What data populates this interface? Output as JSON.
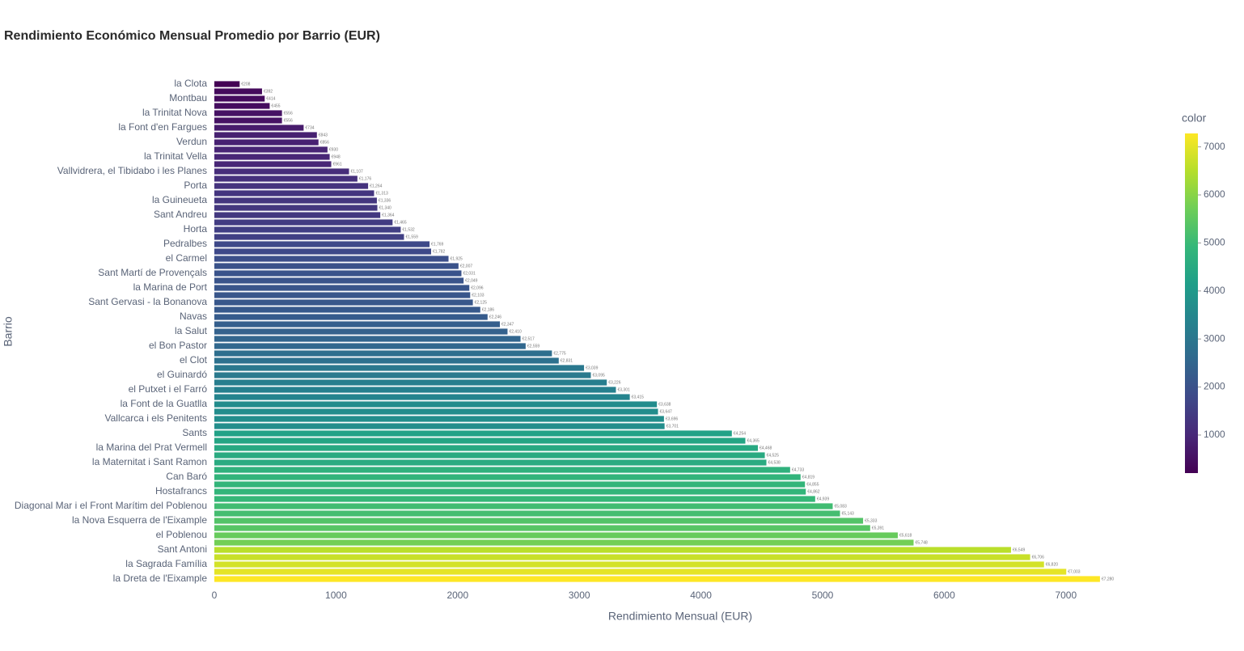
{
  "chart_data": {
    "type": "hbar",
    "title": "Rendimiento Económico Mensual Promedio por Barrio (EUR)",
    "x_label": "Rendimiento Mensual (EUR)",
    "y_label": "Barrio",
    "categories": [
      "la Clota",
      null,
      "Montbau",
      null,
      "la Trinitat Nova",
      null,
      "la Font d'en Fargues",
      null,
      "Verdun",
      null,
      "la Trinitat Vella",
      null,
      "Vallvidrera, el Tibidabo i les Planes",
      null,
      "Porta",
      null,
      "la Guineueta",
      null,
      "Sant Andreu",
      null,
      "Horta",
      null,
      "Pedralbes",
      null,
      "el Carmel",
      null,
      "Sant Martí de Provençals",
      null,
      "la Marina de Port",
      null,
      "Sant Gervasi - la Bonanova",
      null,
      "Navas",
      null,
      "la Salut",
      null,
      "el Bon Pastor",
      null,
      "el Clot",
      null,
      "el Guinardó",
      null,
      "el Putxet i el Farró",
      null,
      "la Font de la Guatlla",
      null,
      "Vallcarca i els Penitents",
      null,
      "Sants",
      null,
      "la Marina del Prat Vermell",
      null,
      "la Maternitat i Sant Ramon",
      null,
      "Can Baró",
      null,
      "Hostafrancs",
      null,
      "Diagonal Mar i el Front Marítim del Poblenou",
      null,
      "la Nova Esquerra de l'Eixample",
      null,
      "el Poblenou",
      null,
      "Sant Antoni",
      null,
      "la Sagrada Família",
      null,
      "la Dreta de l'Eixample"
    ],
    "values": [
      208,
      392,
      414,
      455,
      556,
      556,
      734,
      843,
      856,
      930,
      948,
      961,
      1107,
      1176,
      1264,
      1313,
      1336,
      1340,
      1364,
      1465,
      1532,
      1559,
      1769,
      1782,
      1925,
      2007,
      2031,
      2049,
      2096,
      2103,
      2125,
      2186,
      2246,
      2347,
      2410,
      2517,
      2559,
      2775,
      2831,
      3039,
      3095,
      3226,
      3301,
      3415,
      3638,
      3647,
      3696,
      3701,
      4254,
      4365,
      4468,
      4525,
      4538,
      4733,
      4819,
      4855,
      4862,
      4939,
      5083,
      5143,
      5333,
      5391,
      5618,
      5748,
      6549,
      6706,
      6820,
      7003,
      7280
    ],
    "value_labels": [
      "€208",
      "€392",
      "€414",
      "€455",
      "€556",
      "€556",
      "€734",
      "€843",
      "€856",
      "€930",
      "€948",
      "€961",
      "€1,107",
      "€1,176",
      "€1,264",
      "€1,313",
      "€1,336",
      "€1,340",
      "€1,364",
      "€1,465",
      "€1,532",
      "€1,559",
      "€1,769",
      "€1,782",
      "€1,925",
      "€2,007",
      "€2,031",
      "€2,049",
      "€2,096",
      "€2,103",
      "€2,125",
      "€2,186",
      "€2,246",
      "€2,347",
      "€2,410",
      "€2,517",
      "€2,559",
      "€2,775",
      "€2,831",
      "€3,039",
      "€3,095",
      "€3,226",
      "€3,301",
      "€3,415",
      "€3,638",
      "€3,647",
      "€3,696",
      "€3,701",
      "€4,254",
      "€4,365",
      "€4,468",
      "€4,525",
      "€4,538",
      "€4,733",
      "€4,819",
      "€4,855",
      "€4,862",
      "€4,939",
      "€5,083",
      "€5,143",
      "€5,333",
      "€5,391",
      "€5,618",
      "€5,748",
      "€6,549",
      "€6,706",
      "€6,820",
      "€7,003",
      "€7,280"
    ],
    "xlim": [
      0,
      7480
    ],
    "xticks": [
      0,
      1000,
      2000,
      3000,
      4000,
      5000,
      6000,
      7000
    ],
    "grid": false,
    "colorbar": {
      "title": "color",
      "ticks": [
        1000,
        2000,
        3000,
        4000,
        5000,
        6000,
        7000
      ]
    },
    "colorscale": [
      "#440154",
      "#482878",
      "#3e4989",
      "#31688e",
      "#26828e",
      "#1f9e89",
      "#35b779",
      "#6ece58",
      "#b5de2b",
      "#fde725"
    ]
  }
}
